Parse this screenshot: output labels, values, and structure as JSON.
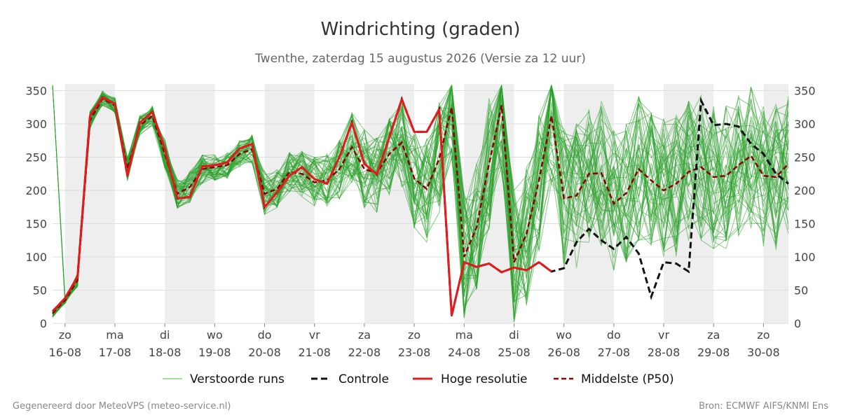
{
  "chart_data": {
    "type": "line",
    "title": "Windrichting (graden)",
    "subtitle": "Twenthe, zaterdag 15 augustus 2026 (Versie za 12 uur)",
    "ylim": [
      0,
      360
    ],
    "y_ticks": [
      0,
      50,
      100,
      150,
      200,
      250,
      300,
      350
    ],
    "x_range_days": [
      15.75,
      30.5
    ],
    "x_ticks": [
      {
        "day": "zo",
        "date": "16-08"
      },
      {
        "day": "ma",
        "date": "17-08"
      },
      {
        "day": "di",
        "date": "18-08"
      },
      {
        "day": "wo",
        "date": "19-08"
      },
      {
        "day": "do",
        "date": "20-08"
      },
      {
        "day": "vr",
        "date": "21-08"
      },
      {
        "day": "za",
        "date": "22-08"
      },
      {
        "day": "zo",
        "date": "23-08"
      },
      {
        "day": "ma",
        "date": "24-08"
      },
      {
        "day": "di",
        "date": "25-08"
      },
      {
        "day": "wo",
        "date": "26-08"
      },
      {
        "day": "do",
        "date": "27-08"
      },
      {
        "day": "vr",
        "date": "28-08"
      },
      {
        "day": "za",
        "date": "29-08"
      },
      {
        "day": "zo",
        "date": "30-08"
      }
    ],
    "shaded_days": [
      16,
      18,
      20,
      22,
      24,
      26,
      28,
      30
    ],
    "grid": true,
    "legend_position": "bottom",
    "colors": {
      "ensemble": "#2ca02c",
      "control": "#111111",
      "highres": "#e41a1c",
      "p50": "#8b0000",
      "shade": "#eeeeee",
      "grid": "#dddddd"
    },
    "series": [
      {
        "name": "Hoge resolutie",
        "style": "solid-red",
        "x": [
          15.75,
          16.0,
          16.25,
          16.5,
          16.75,
          17.0,
          17.25,
          17.5,
          17.75,
          18.0,
          18.25,
          18.5,
          18.75,
          19.0,
          19.25,
          19.5,
          19.75,
          20.0,
          20.25,
          20.5,
          20.75,
          21.0,
          21.25,
          21.5,
          21.75,
          22.0,
          22.25,
          22.5,
          22.75,
          23.0,
          23.25,
          23.5,
          23.75,
          24.0,
          24.25,
          24.5,
          24.75,
          25.0,
          25.25,
          25.5,
          25.75
        ],
        "y": [
          18,
          38,
          70,
          312,
          340,
          330,
          222,
          302,
          318,
          262,
          188,
          190,
          236,
          238,
          242,
          263,
          270,
          175,
          197,
          222,
          235,
          217,
          210,
          250,
          302,
          240,
          224,
          280,
          337,
          288,
          288,
          322,
          12,
          92,
          85,
          90,
          77,
          84,
          80,
          92,
          78
        ]
      },
      {
        "name": "Controle",
        "style": "dashed-black",
        "x": [
          15.75,
          16.0,
          16.25,
          16.5,
          16.75,
          17.0,
          17.25,
          17.5,
          17.75,
          18.0,
          18.25,
          18.5,
          18.75,
          19.0,
          19.25,
          19.5,
          19.75,
          20.0,
          20.25,
          20.5,
          20.75,
          21.0,
          21.25,
          21.5,
          21.75,
          22.0,
          22.25,
          22.5,
          22.75,
          23.0,
          23.25,
          23.5,
          23.75,
          24.0,
          24.25,
          24.5,
          24.75,
          25.0,
          25.25,
          25.5,
          25.75,
          26.0,
          26.25,
          26.5,
          26.75,
          27.0,
          27.25,
          27.5,
          27.75,
          28.0,
          28.25,
          28.5,
          28.75,
          29.0,
          29.25,
          29.5,
          29.75,
          30.0,
          30.25,
          30.5
        ],
        "y": [
          18,
          38,
          70,
          312,
          340,
          330,
          222,
          302,
          318,
          262,
          188,
          190,
          236,
          238,
          242,
          263,
          270,
          175,
          197,
          222,
          235,
          217,
          210,
          250,
          302,
          240,
          224,
          280,
          337,
          288,
          288,
          322,
          12,
          92,
          85,
          90,
          77,
          84,
          80,
          92,
          78,
          83,
          122,
          142,
          125,
          112,
          130,
          105,
          40,
          92,
          90,
          78,
          335,
          298,
          300,
          296,
          270,
          255,
          225,
          210
        ]
      },
      {
        "name": "Middelste (P50)",
        "style": "dashed-darkred",
        "x": [
          15.75,
          16.0,
          16.25,
          16.5,
          16.75,
          17.0,
          17.25,
          17.5,
          17.75,
          18.0,
          18.25,
          18.5,
          18.75,
          19.0,
          19.25,
          19.5,
          19.75,
          20.0,
          20.25,
          20.5,
          20.75,
          21.0,
          21.25,
          21.5,
          21.75,
          22.0,
          22.25,
          22.5,
          22.75,
          23.0,
          23.25,
          23.5,
          23.75,
          24.0,
          24.25,
          24.5,
          24.75,
          25.0,
          25.25,
          25.5,
          25.75,
          26.0,
          26.25,
          26.5,
          26.75,
          27.0,
          27.25,
          27.5,
          27.75,
          28.0,
          28.25,
          28.5,
          28.75,
          29.0,
          29.25,
          29.5,
          29.75,
          30.0,
          30.25,
          30.5
        ],
        "y": [
          15,
          35,
          65,
          305,
          338,
          328,
          232,
          298,
          312,
          255,
          195,
          205,
          232,
          235,
          238,
          255,
          262,
          195,
          202,
          228,
          225,
          212,
          215,
          232,
          265,
          232,
          226,
          255,
          272,
          218,
          202,
          248,
          325,
          100,
          145,
          240,
          328,
          92,
          135,
          215,
          312,
          188,
          192,
          225,
          226,
          180,
          196,
          232,
          215,
          200,
          210,
          228,
          235,
          220,
          222,
          238,
          252,
          222,
          220,
          240
        ]
      },
      {
        "name": "Verstoorde runs",
        "style": "thin-green",
        "member_count": 50,
        "spread_reference": "median",
        "spread_degrees": [
          2,
          5,
          10,
          14,
          12,
          12,
          18,
          15,
          15,
          22,
          22,
          24,
          22,
          20,
          20,
          20,
          22,
          35,
          30,
          30,
          35,
          40,
          40,
          45,
          55,
          60,
          60,
          65,
          70,
          75,
          80,
          85,
          90,
          95,
          95,
          100,
          105,
          110,
          110,
          110,
          110,
          110,
          110,
          110,
          110,
          110,
          110,
          110,
          110,
          110,
          110,
          110,
          110,
          110,
          110,
          110,
          110,
          110,
          110,
          110
        ]
      }
    ],
    "legend": [
      {
        "label": "Verstoorde runs",
        "style": "thin-green"
      },
      {
        "label": "Controle",
        "style": "dashed-black"
      },
      {
        "label": "Hoge resolutie",
        "style": "solid-red"
      },
      {
        "label": "Middelste (P50)",
        "style": "dashed-darkred"
      }
    ]
  },
  "footer": {
    "left": "Gegenereerd door MeteoVPS (meteo-service.nl)",
    "right": "Bron: ECMWF AIFS/KNMI Ens"
  }
}
